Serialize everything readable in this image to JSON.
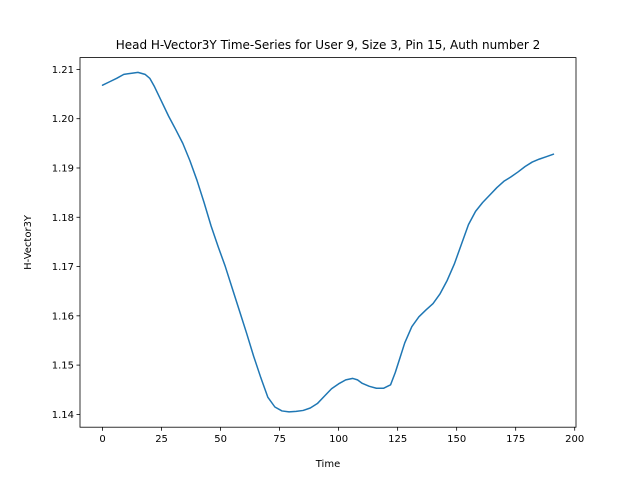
{
  "chart_data": {
    "type": "line",
    "title": "Head H-Vector3Y Time-Series for User 9, Size 3, Pin 15, Auth number 2",
    "xlabel": "Time",
    "ylabel": "H-Vector3Y",
    "xlim": [
      -9.55,
      200.55
    ],
    "ylim": [
      1.1374,
      1.2124
    ],
    "xticks": [
      0,
      25,
      50,
      75,
      100,
      125,
      150,
      175,
      200
    ],
    "xtick_labels": [
      "0",
      "25",
      "50",
      "75",
      "100",
      "125",
      "150",
      "175",
      "200"
    ],
    "yticks": [
      1.14,
      1.15,
      1.16,
      1.17,
      1.18,
      1.19,
      1.2,
      1.21
    ],
    "ytick_labels": [
      "1.14",
      "1.15",
      "1.16",
      "1.17",
      "1.18",
      "1.19",
      "1.20",
      "1.21"
    ],
    "grid": false,
    "legend": "none",
    "series": [
      {
        "color": "#1f77b4",
        "x": [
          0,
          3,
          6,
          9,
          12,
          15,
          18,
          20,
          22,
          25,
          28,
          31,
          34,
          37,
          40,
          43,
          46,
          49,
          52,
          55,
          58,
          61,
          64,
          67,
          70,
          73,
          76,
          79,
          82,
          85,
          88,
          91,
          94,
          97,
          100,
          103,
          106,
          108,
          110,
          113,
          116,
          119,
          122,
          124,
          126,
          128,
          131,
          134,
          137,
          140,
          143,
          146,
          149,
          152,
          155,
          158,
          161,
          164,
          167,
          170,
          173,
          176,
          179,
          182,
          185,
          188,
          191
        ],
        "y": [
          1.2068,
          1.2075,
          1.2082,
          1.209,
          1.2092,
          1.2094,
          1.209,
          1.2082,
          1.2065,
          1.2035,
          1.2005,
          1.1978,
          1.195,
          1.1915,
          1.1875,
          1.183,
          1.1782,
          1.174,
          1.17,
          1.1655,
          1.161,
          1.1565,
          1.1518,
          1.1475,
          1.1435,
          1.1415,
          1.1407,
          1.1405,
          1.1406,
          1.1408,
          1.1413,
          1.1422,
          1.1437,
          1.1452,
          1.1462,
          1.147,
          1.1473,
          1.147,
          1.1463,
          1.1457,
          1.1453,
          1.1453,
          1.146,
          1.1485,
          1.1515,
          1.1545,
          1.1578,
          1.1598,
          1.1612,
          1.1625,
          1.1645,
          1.1672,
          1.1705,
          1.1745,
          1.1785,
          1.1812,
          1.183,
          1.1845,
          1.186,
          1.1873,
          1.1882,
          1.1892,
          1.1903,
          1.1912,
          1.1918,
          1.1923,
          1.1928
        ]
      }
    ]
  }
}
